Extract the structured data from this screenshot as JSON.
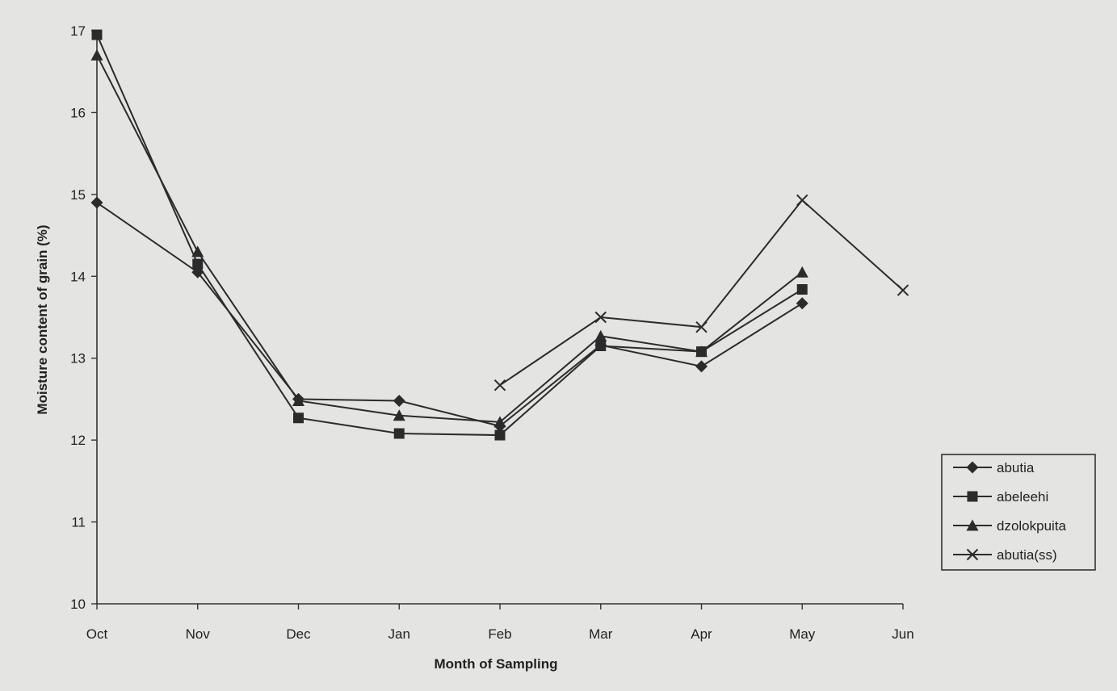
{
  "chart_data": {
    "type": "line",
    "title": "",
    "xlabel": "Month of Sampling",
    "ylabel": "Moisture content of grain (%)",
    "categories": [
      "Oct",
      "Nov",
      "Dec",
      "Jan",
      "Feb",
      "Mar",
      "Apr",
      "May",
      "Jun"
    ],
    "ylim": [
      10,
      17
    ],
    "yticks": [
      10,
      11,
      12,
      13,
      14,
      15,
      16,
      17
    ],
    "grid": false,
    "legend_position": "right",
    "series": [
      {
        "name": "abutia",
        "marker": "diamond",
        "values": [
          14.9,
          14.05,
          12.5,
          12.48,
          12.17,
          13.16,
          12.9,
          13.67,
          null
        ]
      },
      {
        "name": "abeleehi",
        "marker": "square",
        "values": [
          16.95,
          14.15,
          12.27,
          12.08,
          12.06,
          13.15,
          13.08,
          13.84,
          null
        ]
      },
      {
        "name": "dzolokpuita",
        "marker": "triangle",
        "values": [
          16.7,
          14.3,
          12.48,
          12.3,
          12.22,
          13.27,
          13.08,
          14.05,
          null
        ]
      },
      {
        "name": "abutia(ss)",
        "marker": "cross",
        "values": [
          null,
          null,
          null,
          null,
          12.67,
          13.5,
          13.38,
          14.93,
          13.83
        ]
      }
    ],
    "colors": {
      "background": "#e4e4e2",
      "line": "#2b2b2b",
      "axis": "#333333"
    }
  }
}
